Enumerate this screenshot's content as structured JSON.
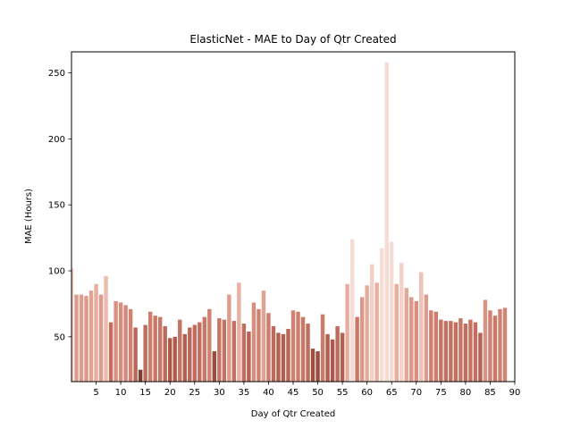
{
  "chart_data": {
    "type": "bar",
    "title": "ElasticNet - MAE to Day of Qtr Created",
    "xlabel": "Day of Qtr Created",
    "ylabel": "MAE (Hours)",
    "xlim": [
      0,
      90
    ],
    "ylim": [
      16,
      266
    ],
    "xticks": [
      5,
      10,
      15,
      20,
      25,
      30,
      35,
      40,
      45,
      50,
      55,
      60,
      65,
      70,
      75,
      80,
      85,
      90
    ],
    "yticks": [
      50,
      100,
      150,
      200,
      250
    ],
    "grid": false,
    "x": [
      0,
      1,
      2,
      3,
      4,
      5,
      6,
      7,
      8,
      9,
      10,
      11,
      12,
      13,
      14,
      15,
      16,
      17,
      18,
      19,
      20,
      21,
      22,
      23,
      24,
      25,
      26,
      27,
      28,
      29,
      30,
      31,
      32,
      33,
      34,
      35,
      36,
      37,
      38,
      39,
      40,
      41,
      42,
      43,
      44,
      45,
      46,
      47,
      48,
      49,
      50,
      51,
      52,
      53,
      54,
      55,
      56,
      57,
      58,
      59,
      60,
      61,
      62,
      63,
      64,
      65,
      66,
      67,
      68,
      69,
      70,
      71,
      72,
      73,
      74,
      75,
      76,
      77,
      78,
      79,
      80,
      81,
      82,
      83,
      84,
      85,
      86,
      87,
      88
    ],
    "values": [
      102,
      82,
      82,
      81,
      85,
      90,
      82,
      96,
      61,
      77,
      76,
      74,
      71,
      57,
      25,
      59,
      69,
      66,
      65,
      58,
      49,
      50,
      63,
      52,
      57,
      59,
      61,
      65,
      71,
      39,
      64,
      63,
      82,
      62,
      91,
      60,
      54,
      76,
      71,
      85,
      68,
      58,
      53,
      52,
      56,
      70,
      69,
      65,
      60,
      41,
      39,
      67,
      52,
      48,
      58,
      53,
      90,
      124,
      65,
      80,
      89,
      105,
      91,
      117,
      258,
      122,
      90,
      106,
      87,
      80,
      77,
      99,
      82,
      70,
      69,
      63,
      62,
      62,
      61,
      64,
      60,
      63,
      61,
      53,
      78,
      70,
      66,
      71,
      72
    ],
    "color_scale": [
      "#f6dcd4",
      "#e7aa9b",
      "#cd7b6b",
      "#a85547",
      "#7c3e31"
    ]
  }
}
